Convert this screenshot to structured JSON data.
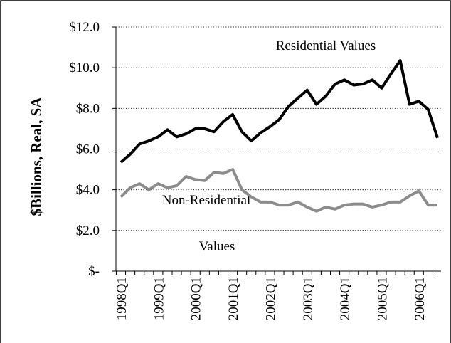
{
  "chart_data": {
    "type": "line",
    "y_axis_label": "$Billions, Real, SA",
    "annotations": [
      "Residential Values",
      "Non-Residential",
      "Values"
    ],
    "categories": [
      "1998Q1",
      null,
      null,
      null,
      "1999Q1",
      null,
      null,
      null,
      "2000Q1",
      null,
      null,
      null,
      "2001Q1",
      null,
      null,
      null,
      "2002Q1",
      null,
      null,
      null,
      "2003Q1",
      null,
      null,
      null,
      "2004Q1",
      null,
      null,
      null,
      "2005Q1",
      null,
      null,
      null,
      "2006Q1",
      null,
      null
    ],
    "series": [
      {
        "color": "#000000",
        "values": [
          5.35,
          5.75,
          6.25,
          6.4,
          6.6,
          6.95,
          6.6,
          6.75,
          7.0,
          7.0,
          6.85,
          7.35,
          7.7,
          6.85,
          6.4,
          6.8,
          7.1,
          7.45,
          8.1,
          8.5,
          8.9,
          8.2,
          8.6,
          9.2,
          9.4,
          9.15,
          9.2,
          9.4,
          9.0,
          9.7,
          10.35,
          8.2,
          8.35,
          7.95,
          6.55
        ]
      },
      {
        "color": "#8c8c8c",
        "values": [
          3.65,
          4.1,
          4.3,
          4.0,
          4.3,
          4.1,
          4.2,
          4.65,
          4.5,
          4.45,
          4.85,
          4.8,
          5.0,
          4.0,
          3.65,
          3.4,
          3.4,
          3.25,
          3.25,
          3.4,
          3.15,
          2.95,
          3.15,
          3.05,
          3.25,
          3.3,
          3.3,
          3.15,
          3.25,
          3.4,
          3.4,
          3.7,
          3.95,
          3.25,
          3.25
        ]
      }
    ],
    "ylim": [
      0,
      12
    ],
    "yticks": [
      {
        "value": 0,
        "label": "$-"
      },
      {
        "value": 2,
        "label": "$2.0"
      },
      {
        "value": 4,
        "label": "$4.0"
      },
      {
        "value": 6,
        "label": "$6.0"
      },
      {
        "value": 8,
        "label": "$8.0"
      },
      {
        "value": 10,
        "label": "$10.0"
      },
      {
        "value": 12,
        "label": "$12.0"
      }
    ],
    "grid": true
  }
}
